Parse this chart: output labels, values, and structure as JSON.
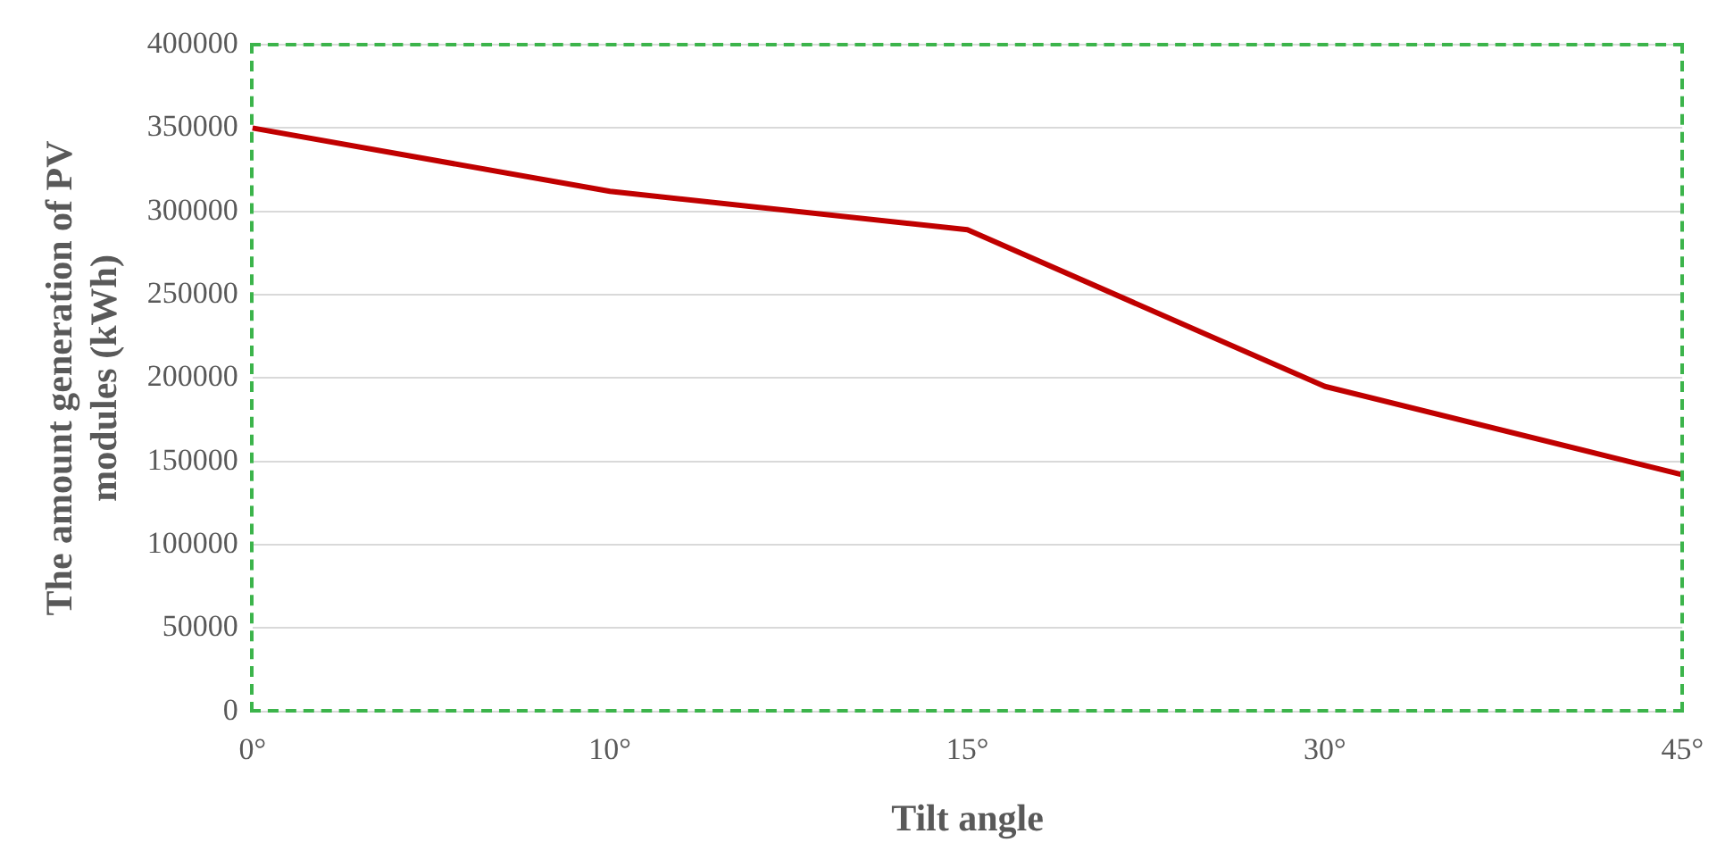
{
  "chart_data": {
    "type": "line",
    "xlabel": "Tilt angle",
    "ylabel": "The amount generation of PV modules (kWh)",
    "categories": [
      "0°",
      "10°",
      "15°",
      "30°",
      "45°"
    ],
    "series": [
      {
        "color": "#c00000",
        "values": [
          350000,
          312000,
          289000,
          195000,
          142000
        ]
      }
    ],
    "ylim": [
      0,
      400000
    ],
    "yticks": [
      0,
      50000,
      100000,
      150000,
      200000,
      250000,
      300000,
      350000,
      400000
    ],
    "grid": "y",
    "legend": false,
    "marker": "none",
    "line_style": "solid"
  }
}
